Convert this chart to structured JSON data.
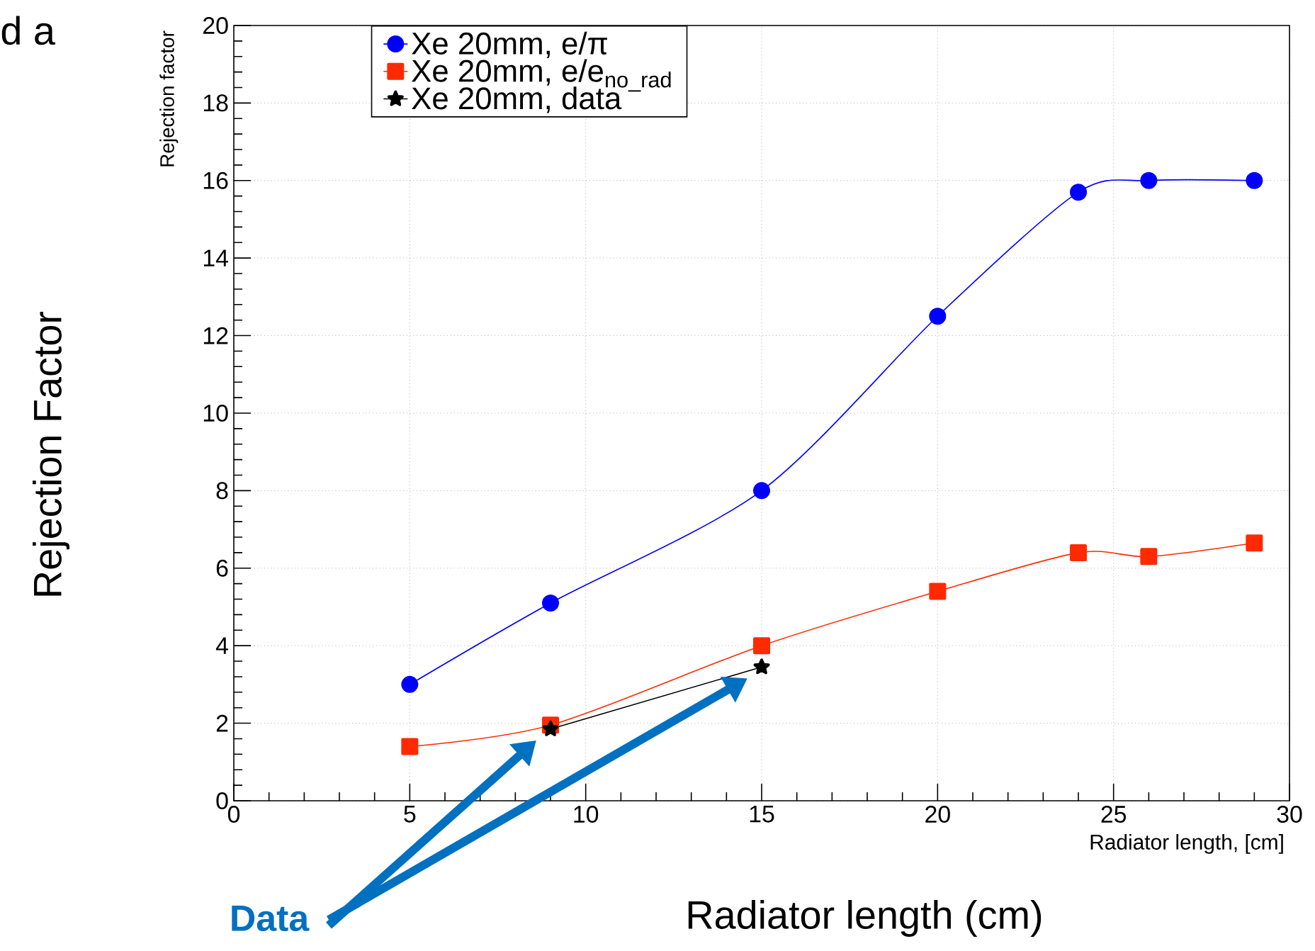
{
  "chart_data": {
    "type": "line",
    "xlabel": "Radiator length, [cm]",
    "ylabel": "Rejection factor",
    "xlim": [
      0,
      30
    ],
    "ylim": [
      0,
      20
    ],
    "xticks": [
      0,
      5,
      10,
      15,
      20,
      25,
      30
    ],
    "yticks": [
      0,
      2,
      4,
      6,
      8,
      10,
      12,
      14,
      16,
      18,
      20
    ],
    "grid": true,
    "legend": "top",
    "line_style": "solid",
    "series": [
      {
        "name": "Xe 20mm, e/π",
        "color": "#0000ff",
        "marker": "circle",
        "x": [
          5,
          9,
          15,
          20,
          24,
          26,
          29
        ],
        "values": [
          3.0,
          5.1,
          8.0,
          12.5,
          15.7,
          16.0,
          16.0
        ]
      },
      {
        "name": "Xe 20mm, e/e$_{no_rad}$",
        "color": "#ff2a00",
        "marker": "square",
        "x": [
          5,
          9,
          15,
          20,
          24,
          26,
          29
        ],
        "values": [
          1.4,
          1.95,
          4.0,
          5.4,
          6.4,
          6.3,
          6.65
        ]
      },
      {
        "name": "Xe 20mm, data",
        "color": "#000000",
        "marker": "star",
        "x": [
          9,
          15
        ],
        "values": [
          1.85,
          3.45
        ]
      }
    ],
    "annotations": [
      "d a",
      "Rejection Factor",
      "Radiator length (cm)",
      "Data"
    ]
  }
}
